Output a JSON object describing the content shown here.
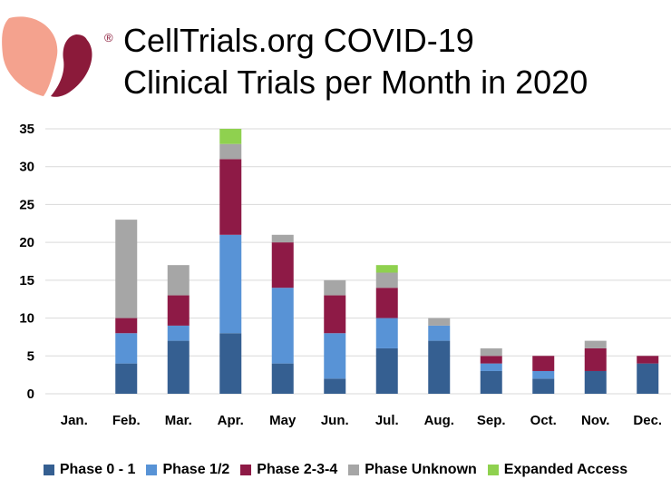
{
  "header": {
    "registered_mark": "®",
    "title_line1": "CellTrials.org  COVID-19",
    "title_line2": "Clinical Trials per Month in 2020"
  },
  "colors": {
    "phase_0_1": "#355f91",
    "phase_1_2": "#5893d6",
    "phase_2_3_4": "#8e1a46",
    "phase_unknown": "#a6a6a6",
    "expanded_access": "#8fd14f",
    "logo_left": "#f4a28e",
    "logo_right": "#8b1a3a"
  },
  "chart_data": {
    "type": "bar",
    "stacked": true,
    "title": "CellTrials.org  COVID-19 Clinical Trials per Month in 2020",
    "categories": [
      "Jan.",
      "Feb.",
      "Mar.",
      "Apr.",
      "May",
      "Jun.",
      "Jul.",
      "Aug.",
      "Sep.",
      "Oct.",
      "Nov.",
      "Dec."
    ],
    "series": [
      {
        "name": "Phase 0 - 1",
        "values": [
          0,
          4,
          7,
          8,
          4,
          2,
          6,
          7,
          3,
          2,
          3,
          4
        ]
      },
      {
        "name": "Phase 1/2",
        "values": [
          0,
          4,
          2,
          13,
          10,
          6,
          4,
          2,
          1,
          1,
          0,
          0
        ]
      },
      {
        "name": "Phase 2-3-4",
        "values": [
          0,
          2,
          4,
          10,
          6,
          5,
          4,
          0,
          1,
          2,
          3,
          1
        ]
      },
      {
        "name": "Phase Unknown",
        "values": [
          0,
          13,
          4,
          2,
          1,
          2,
          2,
          1,
          1,
          0,
          1,
          0
        ]
      },
      {
        "name": "Expanded Access",
        "values": [
          0,
          0,
          0,
          2,
          0,
          0,
          1,
          0,
          0,
          0,
          0,
          0
        ]
      }
    ],
    "ylim": [
      0,
      35
    ],
    "yticks": [
      0,
      5,
      10,
      15,
      20,
      25,
      30,
      35
    ],
    "ytick_labels": [
      "0",
      "5",
      "10",
      "15",
      "20",
      "25",
      "30",
      "35"
    ],
    "grid": true,
    "legend_position": "bottom"
  }
}
